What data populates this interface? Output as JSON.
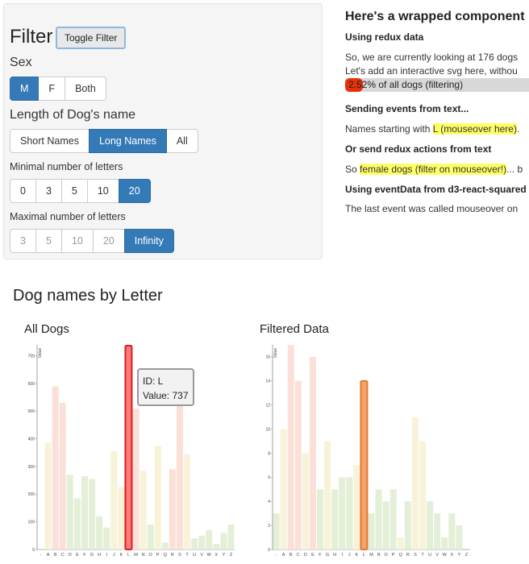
{
  "filter_panel": {
    "title": "Filter",
    "toggle_label": "Toggle Filter",
    "sex": {
      "label": "Sex",
      "options": [
        {
          "label": "M",
          "active": true
        },
        {
          "label": "F",
          "active": false
        },
        {
          "label": "Both",
          "active": false
        }
      ]
    },
    "name_length": {
      "label": "Length of Dog's name",
      "options": [
        {
          "label": "Short Names",
          "active": false
        },
        {
          "label": "Long Names",
          "active": true
        },
        {
          "label": "All",
          "active": false
        }
      ]
    },
    "min_letters": {
      "label": "Minimal number of letters",
      "options": [
        {
          "label": "0",
          "active": false
        },
        {
          "label": "3",
          "active": false
        },
        {
          "label": "5",
          "active": false
        },
        {
          "label": "10",
          "active": false
        },
        {
          "label": "20",
          "active": true
        }
      ]
    },
    "max_letters": {
      "label": "Maximal number of letters",
      "options": [
        {
          "label": "3",
          "active": false
        },
        {
          "label": "5",
          "active": false
        },
        {
          "label": "10",
          "active": false
        },
        {
          "label": "20",
          "active": false
        },
        {
          "label": "Infinity",
          "active": true
        }
      ]
    }
  },
  "wrapped": {
    "title": "Here's a wrapped component",
    "redux_heading": "Using redux data",
    "redux_line1": "So, we are currently looking at 176 dogs",
    "redux_line2": "Let's add an interactive svg here, withou",
    "progress_text": "2.52% of all dogs (filtering)",
    "progress_value": 0.0252,
    "events_heading": "Sending events from text...",
    "events_prefix": "Names starting with ",
    "events_highlight": "L (mouseover here)",
    "events_suffix": ".",
    "redux_actions_heading": "Or send redux actions from text",
    "actions_prefix": "So ",
    "actions_highlight": "female dogs (filter on mouseover!)",
    "actions_suffix": "... b",
    "eventdata_heading": "Using eventData from d3-react-squared",
    "eventdata_line": "The last event was called mouseover on"
  },
  "charts_section_title": "Dog names by Letter",
  "tooltip": {
    "id_text": "ID: L",
    "value_text": "Value: 737"
  },
  "colors": {
    "accent": "#337ab7",
    "bar_pink": "#fbe0d8",
    "bar_yellow": "#f7f2d8",
    "bar_green": "#e3efd7",
    "highlight_red_fill": "#ff7b7b",
    "highlight_red_stroke": "#d81e1e",
    "highlight_orange_fill": "#f6a26a",
    "highlight_orange_stroke": "#e07a30",
    "progress_fill": "#e8300a"
  },
  "chart_data": [
    {
      "type": "bar",
      "title": "All Dogs",
      "ylabel": "Value",
      "ylim": [
        0,
        740
      ],
      "yticks": [
        "0",
        "100",
        "200",
        "300",
        "400",
        "500",
        "600",
        "700"
      ],
      "categories": [
        "-",
        "A",
        "B",
        "C",
        "D",
        "E",
        "F",
        "G",
        "H",
        "I",
        "J",
        "K",
        "L",
        "M",
        "N",
        "O",
        "P",
        "Q",
        "R",
        "S",
        "T",
        "U",
        "V",
        "W",
        "X",
        "Y",
        "Z"
      ],
      "values": [
        0,
        385,
        590,
        530,
        270,
        185,
        265,
        255,
        120,
        80,
        355,
        225,
        737,
        510,
        285,
        90,
        375,
        25,
        290,
        600,
        345,
        40,
        50,
        70,
        20,
        60,
        90
      ],
      "highlight": "L",
      "bar_colors": [
        "yellow",
        "yellow",
        "pink",
        "pink",
        "green",
        "green",
        "green",
        "green",
        "green",
        "green",
        "yellow",
        "yellow",
        "red",
        "pink",
        "yellow",
        "green",
        "yellow",
        "green",
        "pink",
        "pink",
        "yellow",
        "green",
        "green",
        "green",
        "green",
        "green",
        "green"
      ]
    },
    {
      "type": "bar",
      "title": "Filtered Data",
      "ylabel": "Value",
      "ylim": [
        0,
        17
      ],
      "yticks": [
        "0",
        "2",
        "4",
        "6",
        "8",
        "10",
        "12",
        "14",
        "16"
      ],
      "categories": [
        "-",
        "A",
        "B",
        "C",
        "D",
        "E",
        "F",
        "G",
        "H",
        "I",
        "J",
        "K",
        "L",
        "M",
        "N",
        "O",
        "P",
        "Q",
        "R",
        "S",
        "T",
        "U",
        "V",
        "W",
        "X",
        "Y",
        "Z"
      ],
      "values": [
        3,
        10,
        17,
        14,
        8,
        16,
        5,
        9,
        5,
        6,
        6,
        7,
        14,
        3,
        5,
        4,
        5,
        1,
        4,
        11,
        9,
        4,
        3,
        1,
        3,
        2,
        0
      ],
      "highlight": "L",
      "bar_colors": [
        "green",
        "yellow",
        "pink",
        "pink",
        "yellow",
        "pink",
        "green",
        "yellow",
        "green",
        "green",
        "green",
        "yellow",
        "orange",
        "green",
        "green",
        "green",
        "green",
        "yellow",
        "green",
        "yellow",
        "yellow",
        "green",
        "green",
        "green",
        "green",
        "green",
        "green"
      ]
    }
  ]
}
